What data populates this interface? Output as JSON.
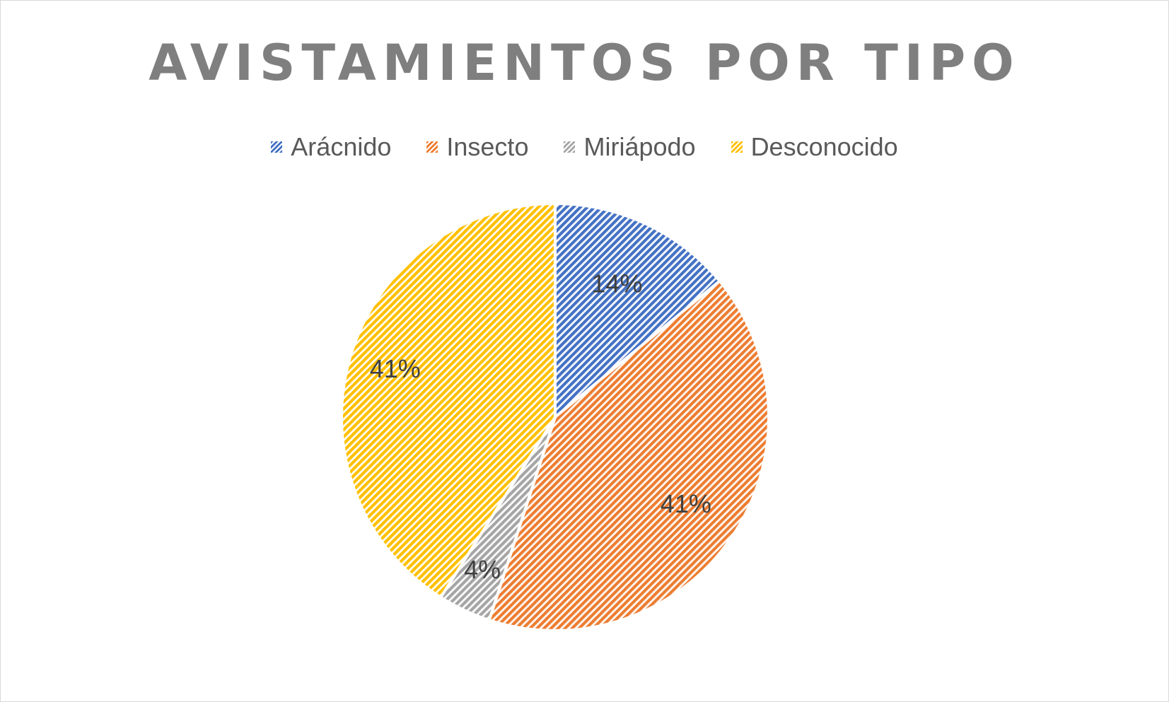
{
  "chart_data": {
    "type": "pie",
    "title": "AVISTAMIENTOS POR TIPO",
    "categories": [
      "Arácnido",
      "Insecto",
      "Miriápodo",
      "Desconocido"
    ],
    "values": [
      14,
      41,
      4,
      41
    ],
    "labels": [
      "14%",
      "41%",
      "4%",
      "41%"
    ],
    "colors": [
      "#4472c4",
      "#ed7d31",
      "#a5a5a5",
      "#ffc000"
    ],
    "legend_position": "top",
    "fill_pattern": "diagonal-stripes"
  }
}
